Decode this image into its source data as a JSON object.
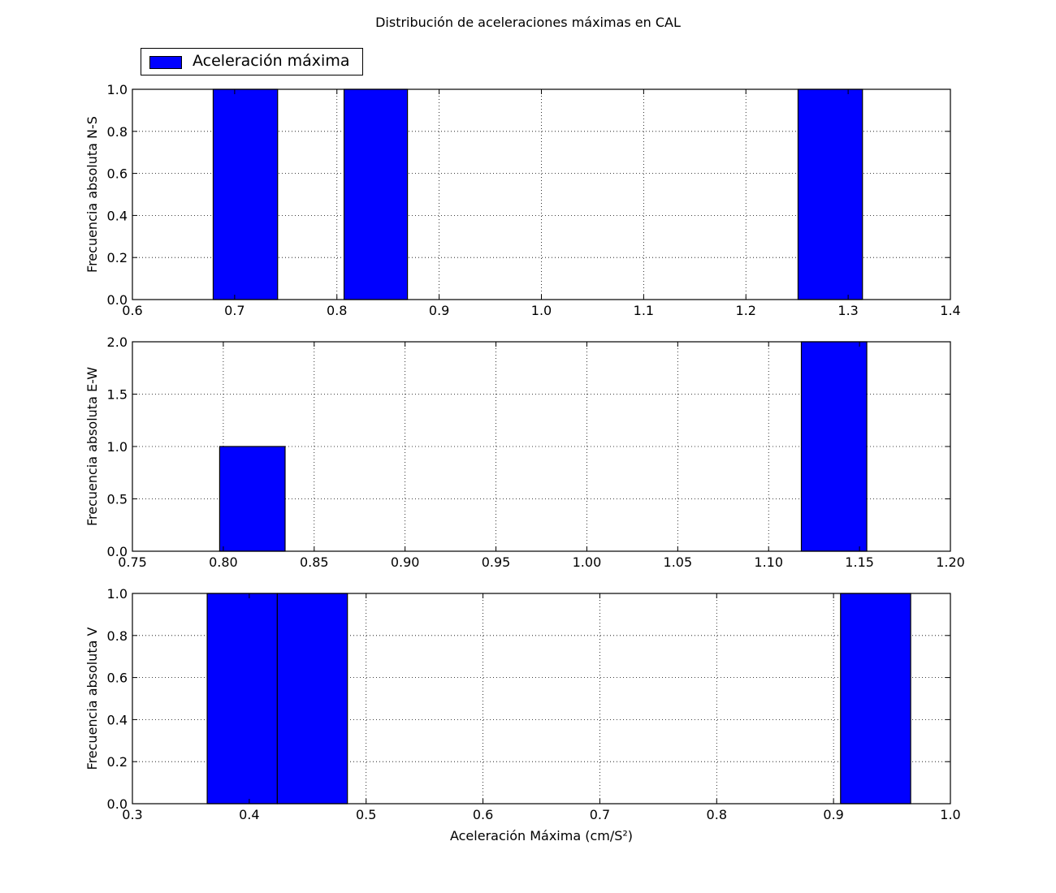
{
  "figure": {
    "title": "Distribución de aceleraciones máximas en CAL",
    "legend": {
      "label": "Aceleración máxima",
      "color": "#0000ff"
    }
  },
  "chart_data": [
    {
      "type": "bar",
      "subtype": "histogram",
      "title": "Distribución de aceleraciones máximas en CAL",
      "ylabel": "Frecuencia absoluta N-S",
      "xlabel": "",
      "xlim": [
        0.6,
        1.4
      ],
      "ylim": [
        0,
        1.0
      ],
      "xticks": [
        "0.6",
        "0.7",
        "0.8",
        "0.9",
        "1.0",
        "1.1",
        "1.2",
        "1.3",
        "1.4"
      ],
      "yticks": [
        "0.0",
        "0.2",
        "0.4",
        "0.6",
        "0.8",
        "1.0"
      ],
      "grid": true,
      "bars": [
        {
          "x0": 0.679,
          "x1": 0.742,
          "value": 1
        },
        {
          "x0": 0.807,
          "x1": 0.869,
          "value": 1
        },
        {
          "x0": 1.251,
          "x1": 1.314,
          "value": 1
        }
      ],
      "color": "#0000ff"
    },
    {
      "type": "bar",
      "subtype": "histogram",
      "ylabel": "Frecuencia absoluta E-W",
      "xlabel": "",
      "xlim": [
        0.75,
        1.2
      ],
      "ylim": [
        0,
        2.0
      ],
      "xticks": [
        "0.75",
        "0.80",
        "0.85",
        "0.90",
        "0.95",
        "1.00",
        "1.05",
        "1.10",
        "1.15",
        "1.20"
      ],
      "yticks": [
        "0.0",
        "0.5",
        "1.0",
        "1.5",
        "2.0"
      ],
      "grid": true,
      "bars": [
        {
          "x0": 0.798,
          "x1": 0.834,
          "value": 1
        },
        {
          "x0": 1.118,
          "x1": 1.154,
          "value": 2
        }
      ],
      "color": "#0000ff"
    },
    {
      "type": "bar",
      "subtype": "histogram",
      "ylabel": "Frecuencia absoluta V",
      "xlabel": "Aceleración Máxima (cm/S²)",
      "xlim": [
        0.3,
        1.0
      ],
      "ylim": [
        0,
        1.0
      ],
      "xticks": [
        "0.3",
        "0.4",
        "0.5",
        "0.6",
        "0.7",
        "0.8",
        "0.9",
        "1.0"
      ],
      "yticks": [
        "0.0",
        "0.2",
        "0.4",
        "0.6",
        "0.8",
        "1.0"
      ],
      "grid": true,
      "bars": [
        {
          "x0": 0.364,
          "x1": 0.424,
          "value": 1
        },
        {
          "x0": 0.424,
          "x1": 0.484,
          "value": 1
        },
        {
          "x0": 0.906,
          "x1": 0.966,
          "value": 1
        }
      ],
      "color": "#0000ff"
    }
  ]
}
